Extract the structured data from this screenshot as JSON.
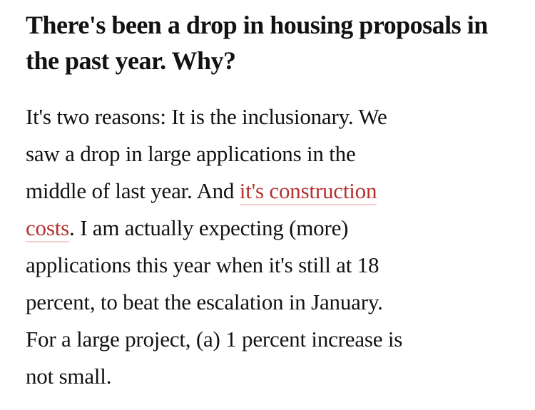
{
  "page": {
    "background": "#ffffff",
    "text_color": "#121212"
  },
  "article": {
    "heading": {
      "text": "There's been a drop in housing proposals in the past year. Why?",
      "lines": [
        "There's been a drop in housing proposals in",
        "the past year. Why?"
      ]
    },
    "paragraph": {
      "text": "It's two reasons: It is the inclusionary. We saw a drop in large applications in the middle of last year. And it's construction costs. I am actually expecting (more) applications this year when it's still at 18 percent, to beat the escalation in January. For a large project, (a) 1 percent increase is not small.",
      "lines": [
        [
          {
            "text": "It's two reasons: It is the inclusionary. We"
          }
        ],
        [
          {
            "text": "saw a drop in large applications in the"
          }
        ],
        [
          {
            "text": "middle of last year. And "
          },
          {
            "text": "it's construction",
            "link": true
          }
        ],
        [
          {
            "text": "costs",
            "link": true
          },
          {
            "text": ". I am actually expecting (more)"
          }
        ],
        [
          {
            "text": "applications this year when it's still at 18"
          }
        ],
        [
          {
            "text": "percent, to beat the escalation in January."
          }
        ],
        [
          {
            "text": "For a large project, (a) 1 percent increase is"
          }
        ],
        [
          {
            "text": "not small."
          }
        ]
      ],
      "link": {
        "text": "it's construction costs",
        "color": "#b5312f",
        "underline_color": "#f2cfcf"
      }
    }
  }
}
